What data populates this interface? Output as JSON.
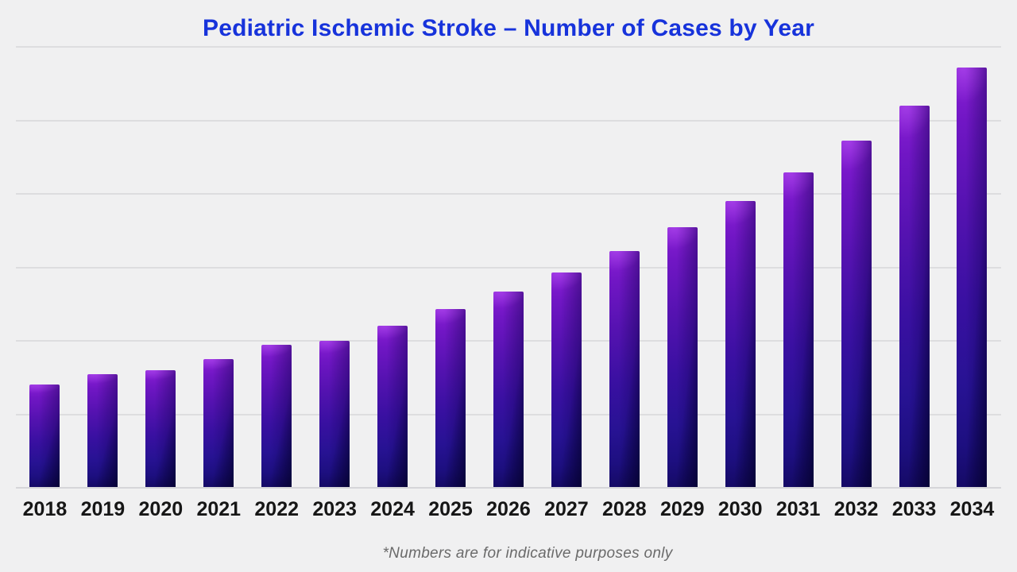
{
  "title": "Pediatric Ischemic Stroke – Number of Cases by Year",
  "footnote": "*Numbers are for indicative purposes only",
  "colors": {
    "background": "#f0f0f1",
    "title_text": "#1733db",
    "gridline": "#dddddf",
    "axis_baseline": "#d6d6d9",
    "x_label_text": "#161616",
    "footnote_text": "#6a6a6a",
    "bar_gradient_top_left": "#8a1fd6",
    "bar_gradient_mid": "#3910a1",
    "bar_gradient_bottom_right": "#0b0545"
  },
  "chart_data": {
    "type": "bar",
    "title": "Pediatric Ischemic Stroke – Number of Cases by Year",
    "categories": [
      "2018",
      "2019",
      "2020",
      "2021",
      "2022",
      "2023",
      "2024",
      "2025",
      "2026",
      "2027",
      "2028",
      "2029",
      "2030",
      "2031",
      "2032",
      "2033",
      "2034"
    ],
    "values": [
      140,
      153,
      159,
      174,
      193,
      199,
      220,
      242,
      266,
      292,
      321,
      353,
      389,
      428,
      471,
      519,
      571
    ],
    "xlabel": "",
    "ylabel": "",
    "ylim": [
      0,
      600
    ],
    "gridline_step": 100,
    "y_tick_labels_visible": false,
    "grid": "horizontal",
    "legend": "none",
    "annotation": "*Numbers are for indicative purposes only"
  }
}
